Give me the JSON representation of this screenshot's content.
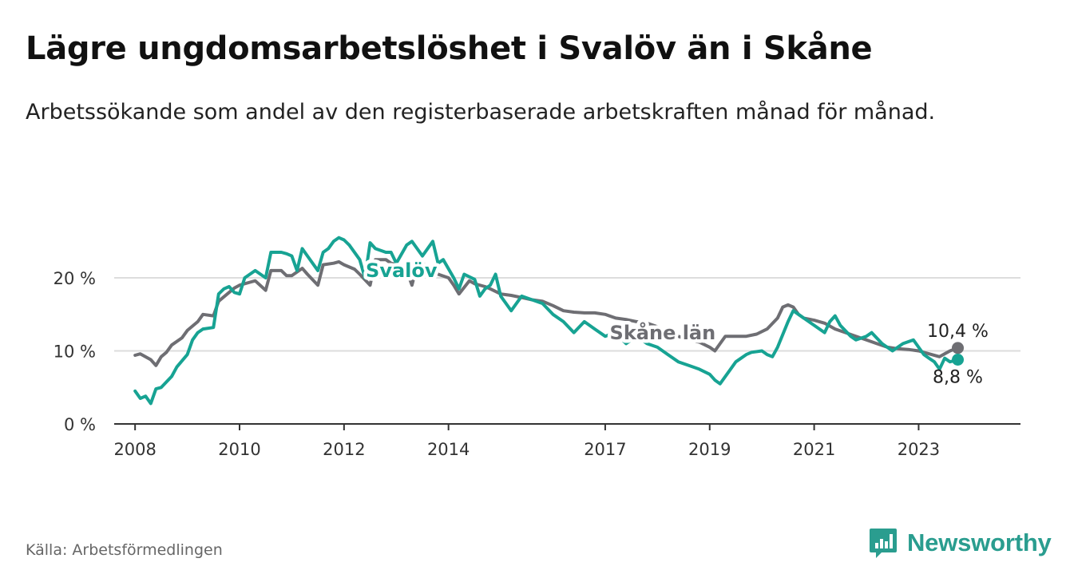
{
  "title": "Lägre ungdomsarbetslöshet i Svalöv än i Skåne",
  "subtitle": "Arbetssökande som andel av den registerbaserade arbetskraften månad för månad.",
  "source": "Källa: Arbetsförmedlingen",
  "brand": {
    "name": "Newsworthy",
    "icon": "newsworthy-logo-icon",
    "color": "#2a9d8f"
  },
  "colors": {
    "svalov": "#17a393",
    "skane": "#6e6e73",
    "grid": "#dddddd",
    "axis": "#333333"
  },
  "chart_data": {
    "type": "line",
    "title": "Lägre ungdomsarbetslöshet i Svalöv än i Skåne",
    "xlabel": "",
    "ylabel": "",
    "xlim": [
      2007.6,
      2024.95
    ],
    "ylim": [
      0,
      27
    ],
    "x_ticks": [
      2008,
      2010,
      2012,
      2014,
      2017,
      2019,
      2021,
      2023
    ],
    "x_tick_labels": [
      "2008",
      "2010",
      "2012",
      "2014",
      "2017",
      "2019",
      "2021",
      "2023"
    ],
    "y_ticks": [
      0,
      10,
      20
    ],
    "y_tick_labels": [
      "0 %",
      "10 %",
      "20 %"
    ],
    "series": [
      {
        "name": "Skåne län",
        "label": "Skåne län",
        "end_label": "10,4 %",
        "color": "#6e6e73",
        "x": [
          2008.0,
          2008.1,
          2008.3,
          2008.4,
          2008.5,
          2008.6,
          2008.7,
          2008.9,
          2009.0,
          2009.2,
          2009.3,
          2009.5,
          2009.6,
          2009.8,
          2009.9,
          2010.0,
          2010.2,
          2010.3,
          2010.5,
          2010.6,
          2010.8,
          2010.9,
          2011.0,
          2011.2,
          2011.3,
          2011.5,
          2011.6,
          2011.8,
          2011.9,
          2012.0,
          2012.2,
          2012.3,
          2012.5,
          2012.6,
          2012.8,
          2012.9,
          2013.0,
          2013.2,
          2013.3,
          2013.4,
          2013.5,
          2013.7,
          2013.8,
          2014.0,
          2014.1,
          2014.2,
          2014.4,
          2014.5,
          2014.7,
          2014.8,
          2015.0,
          2015.2,
          2015.4,
          2015.6,
          2015.8,
          2016.0,
          2016.2,
          2016.4,
          2016.6,
          2016.8,
          2017.0,
          2017.2,
          2017.4,
          2017.6,
          2017.8,
          2018.0,
          2018.2,
          2018.4,
          2018.6,
          2018.8,
          2019.0,
          2019.1,
          2019.2,
          2019.3,
          2019.5,
          2019.7,
          2019.9,
          2020.1,
          2020.3,
          2020.4,
          2020.5,
          2020.6,
          2020.7,
          2020.8,
          2021.0,
          2021.2,
          2021.4,
          2021.6,
          2021.8,
          2022.0,
          2022.2,
          2022.4,
          2022.6,
          2022.8,
          2023.0,
          2023.2,
          2023.4,
          2023.6,
          2023.75
        ],
        "y": [
          9.4,
          9.6,
          8.8,
          8.0,
          9.2,
          9.8,
          10.8,
          11.8,
          12.8,
          14.0,
          15.0,
          14.8,
          16.8,
          18.0,
          18.6,
          19.0,
          19.4,
          19.6,
          18.3,
          21.0,
          21.0,
          20.3,
          20.3,
          21.3,
          20.5,
          19.0,
          21.8,
          22.0,
          22.2,
          21.8,
          21.2,
          20.5,
          19.0,
          22.5,
          22.5,
          22.0,
          21.8,
          21.0,
          19.0,
          21.8,
          22.0,
          21.2,
          20.5,
          20.0,
          19.0,
          17.8,
          19.6,
          19.2,
          18.8,
          18.5,
          17.8,
          17.6,
          17.3,
          17.0,
          16.8,
          16.2,
          15.5,
          15.3,
          15.2,
          15.2,
          15.0,
          14.5,
          14.3,
          14.0,
          13.8,
          13.3,
          12.5,
          12.0,
          11.5,
          11.2,
          10.5,
          10.0,
          11.0,
          12.0,
          12.0,
          12.0,
          12.3,
          13.0,
          14.5,
          16.0,
          16.3,
          16.0,
          15.0,
          14.5,
          14.2,
          13.8,
          13.0,
          12.5,
          12.0,
          11.5,
          11.0,
          10.5,
          10.3,
          10.2,
          10.0,
          9.6,
          9.2,
          10.0,
          10.4
        ]
      },
      {
        "name": "Svalöv",
        "label": "Svalöv",
        "end_label": "8,8 %",
        "color": "#17a393",
        "x": [
          2008.0,
          2008.1,
          2008.2,
          2008.3,
          2008.4,
          2008.5,
          2008.7,
          2008.8,
          2009.0,
          2009.1,
          2009.2,
          2009.3,
          2009.5,
          2009.6,
          2009.7,
          2009.8,
          2009.9,
          2010.0,
          2010.1,
          2010.3,
          2010.4,
          2010.5,
          2010.6,
          2010.8,
          2010.9,
          2011.0,
          2011.1,
          2011.2,
          2011.3,
          2011.5,
          2011.6,
          2011.7,
          2011.8,
          2011.9,
          2012.0,
          2012.1,
          2012.3,
          2012.4,
          2012.5,
          2012.6,
          2012.8,
          2012.9,
          2013.0,
          2013.2,
          2013.3,
          2013.4,
          2013.5,
          2013.7,
          2013.8,
          2013.9,
          2014.1,
          2014.2,
          2014.3,
          2014.5,
          2014.6,
          2014.7,
          2014.8,
          2014.9,
          2015.0,
          2015.2,
          2015.4,
          2015.6,
          2015.8,
          2016.0,
          2016.2,
          2016.4,
          2016.6,
          2016.8,
          2017.0,
          2017.2,
          2017.4,
          2017.6,
          2017.8,
          2018.0,
          2018.2,
          2018.4,
          2018.6,
          2018.8,
          2019.0,
          2019.1,
          2019.2,
          2019.4,
          2019.5,
          2019.6,
          2019.7,
          2019.8,
          2020.0,
          2020.1,
          2020.2,
          2020.3,
          2020.5,
          2020.6,
          2020.7,
          2020.8,
          2021.0,
          2021.2,
          2021.3,
          2021.4,
          2021.5,
          2021.7,
          2021.8,
          2022.0,
          2022.1,
          2022.3,
          2022.5,
          2022.7,
          2022.9,
          2023.0,
          2023.1,
          2023.2,
          2023.3,
          2023.4,
          2023.5,
          2023.6,
          2023.75
        ],
        "y": [
          4.5,
          3.5,
          3.8,
          2.8,
          4.8,
          5.0,
          6.5,
          7.8,
          9.5,
          11.5,
          12.5,
          13.0,
          13.2,
          17.8,
          18.5,
          18.8,
          18.0,
          17.8,
          20.0,
          21.0,
          20.5,
          20.0,
          23.5,
          23.5,
          23.3,
          23.0,
          21.0,
          24.0,
          23.0,
          21.0,
          23.5,
          24.0,
          25.0,
          25.5,
          25.2,
          24.5,
          22.5,
          20.0,
          24.8,
          24.0,
          23.5,
          23.5,
          22.0,
          24.5,
          25.0,
          24.0,
          23.0,
          25.0,
          22.0,
          22.5,
          20.0,
          18.5,
          20.5,
          19.8,
          17.5,
          18.5,
          19.0,
          20.5,
          17.5,
          15.5,
          17.5,
          17.0,
          16.5,
          15.0,
          14.0,
          12.5,
          14.0,
          13.0,
          12.0,
          12.5,
          11.0,
          12.0,
          11.0,
          10.5,
          9.5,
          8.5,
          8.0,
          7.5,
          6.8,
          6.0,
          5.5,
          7.5,
          8.5,
          9.0,
          9.5,
          9.8,
          10.0,
          9.5,
          9.2,
          10.5,
          14.0,
          15.5,
          15.0,
          14.5,
          13.5,
          12.5,
          14.0,
          14.8,
          13.5,
          12.0,
          11.5,
          12.0,
          12.5,
          11.0,
          10.0,
          11.0,
          11.5,
          10.5,
          9.5,
          9.0,
          8.5,
          7.5,
          9.0,
          8.5,
          8.8
        ]
      }
    ],
    "end_markers": [
      {
        "series": "Skåne län",
        "x": 2023.75,
        "y": 10.4,
        "label": "10,4 %"
      },
      {
        "series": "Svalöv",
        "x": 2023.75,
        "y": 8.8,
        "label": "8,8 %"
      }
    ]
  }
}
